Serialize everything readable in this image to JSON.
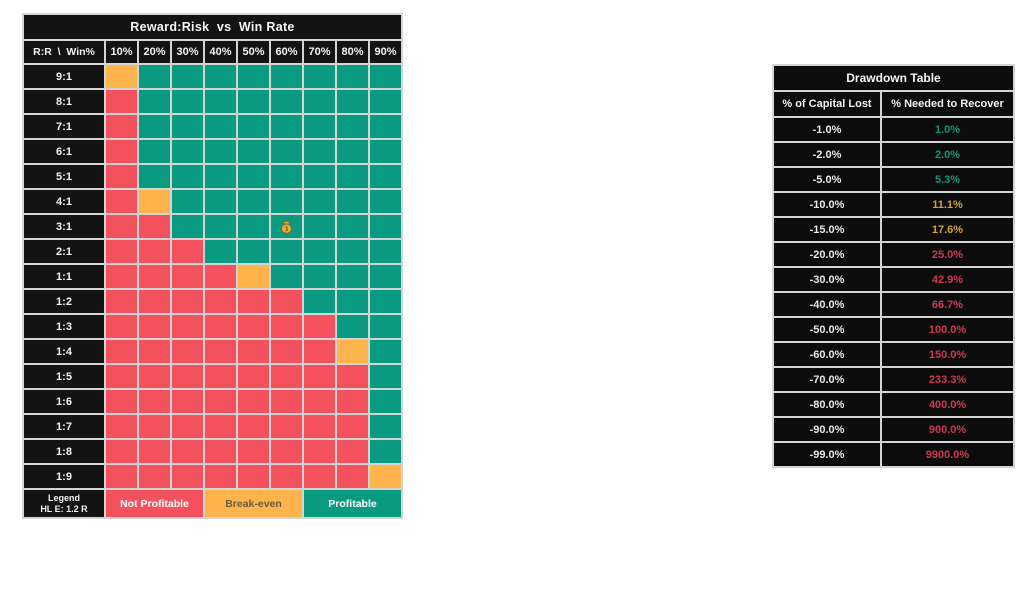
{
  "chart_data": [
    {
      "type": "heatmap",
      "title": "Reward:Risk  vs  Win Rate",
      "corner_label": "R:R  \\  Win%",
      "x_labels": [
        "10%",
        "20%",
        "30%",
        "40%",
        "50%",
        "60%",
        "70%",
        "80%",
        "90%"
      ],
      "y_labels": [
        "9:1",
        "8:1",
        "7:1",
        "6:1",
        "5:1",
        "4:1",
        "3:1",
        "2:1",
        "1:1",
        "1:2",
        "1:3",
        "1:4",
        "1:5",
        "1:6",
        "1:7",
        "1:8",
        "1:9"
      ],
      "cell_legend": {
        "N": "Not Profitable",
        "B": "Break-even",
        "P": "Profitable"
      },
      "cells": [
        [
          "B",
          "P",
          "P",
          "P",
          "P",
          "P",
          "P",
          "P",
          "P"
        ],
        [
          "N",
          "P",
          "P",
          "P",
          "P",
          "P",
          "P",
          "P",
          "P"
        ],
        [
          "N",
          "P",
          "P",
          "P",
          "P",
          "P",
          "P",
          "P",
          "P"
        ],
        [
          "N",
          "P",
          "P",
          "P",
          "P",
          "P",
          "P",
          "P",
          "P"
        ],
        [
          "N",
          "P",
          "P",
          "P",
          "P",
          "P",
          "P",
          "P",
          "P"
        ],
        [
          "N",
          "B",
          "P",
          "P",
          "P",
          "P",
          "P",
          "P",
          "P"
        ],
        [
          "N",
          "N",
          "P",
          "P",
          "P",
          "P",
          "P",
          "P",
          "P"
        ],
        [
          "N",
          "N",
          "N",
          "P",
          "P",
          "P",
          "P",
          "P",
          "P"
        ],
        [
          "N",
          "N",
          "N",
          "N",
          "B",
          "P",
          "P",
          "P",
          "P"
        ],
        [
          "N",
          "N",
          "N",
          "N",
          "N",
          "N",
          "P",
          "P",
          "P"
        ],
        [
          "N",
          "N",
          "N",
          "N",
          "N",
          "N",
          "N",
          "P",
          "P"
        ],
        [
          "N",
          "N",
          "N",
          "N",
          "N",
          "N",
          "N",
          "B",
          "P"
        ],
        [
          "N",
          "N",
          "N",
          "N",
          "N",
          "N",
          "N",
          "N",
          "P"
        ],
        [
          "N",
          "N",
          "N",
          "N",
          "N",
          "N",
          "N",
          "N",
          "P"
        ],
        [
          "N",
          "N",
          "N",
          "N",
          "N",
          "N",
          "N",
          "N",
          "P"
        ],
        [
          "N",
          "N",
          "N",
          "N",
          "N",
          "N",
          "N",
          "N",
          "P"
        ],
        [
          "N",
          "N",
          "N",
          "N",
          "N",
          "N",
          "N",
          "N",
          "B"
        ]
      ],
      "colors": {
        "N": "#f4515f",
        "B": "#fdb44d",
        "P": "#0a9a80"
      },
      "marker": {
        "row": "3:1",
        "col": "60%",
        "icon": "money-bag"
      },
      "legend": {
        "header_line1": "Legend",
        "header_line2": "HL E: 1.2 R",
        "items": [
          {
            "key": "N",
            "label": "Not Profitable"
          },
          {
            "key": "B",
            "label": "Break-even"
          },
          {
            "key": "P",
            "label": "Profitable"
          }
        ]
      }
    },
    {
      "type": "table",
      "title": "Drawdown Table",
      "columns": [
        "% of Capital Lost",
        "% Needed to Recover"
      ],
      "rows": [
        {
          "lost": "-1.0%",
          "recover": "1.0%",
          "severity": "low"
        },
        {
          "lost": "-2.0%",
          "recover": "2.0%",
          "severity": "low"
        },
        {
          "lost": "-5.0%",
          "recover": "5.3%",
          "severity": "low"
        },
        {
          "lost": "-10.0%",
          "recover": "11.1%",
          "severity": "medium"
        },
        {
          "lost": "-15.0%",
          "recover": "17.6%",
          "severity": "medium"
        },
        {
          "lost": "-20.0%",
          "recover": "25.0%",
          "severity": "high"
        },
        {
          "lost": "-30.0%",
          "recover": "42.9%",
          "severity": "high"
        },
        {
          "lost": "-40.0%",
          "recover": "66.7%",
          "severity": "high"
        },
        {
          "lost": "-50.0%",
          "recover": "100.0%",
          "severity": "high"
        },
        {
          "lost": "-60.0%",
          "recover": "150.0%",
          "severity": "high"
        },
        {
          "lost": "-70.0%",
          "recover": "233.3%",
          "severity": "high"
        },
        {
          "lost": "-80.0%",
          "recover": "400.0%",
          "severity": "high"
        },
        {
          "lost": "-90.0%",
          "recover": "900.0%",
          "severity": "high"
        },
        {
          "lost": "-99.0%",
          "recover": "9900.0%",
          "severity": "high"
        }
      ],
      "severity_colors": {
        "low": "#12947d",
        "medium": "#d4a139",
        "high": "#cc3a50"
      }
    }
  ]
}
